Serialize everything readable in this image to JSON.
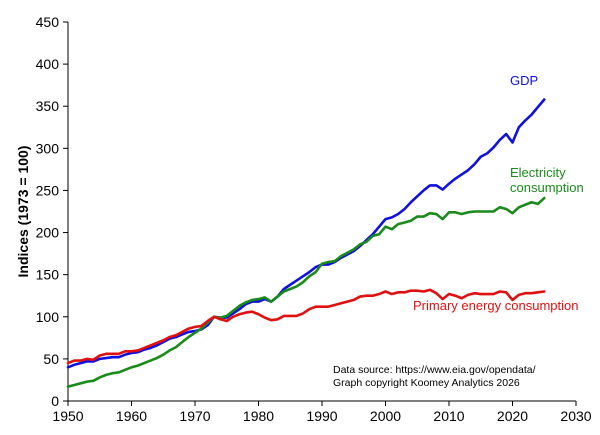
{
  "chart_data": {
    "type": "line",
    "ylabel": "Indices (1973 = 100)",
    "xlim": [
      1950,
      2030
    ],
    "ylim": [
      0,
      450
    ],
    "x_ticks": [
      1950,
      1960,
      1970,
      1980,
      1990,
      2000,
      2010,
      2020,
      2030
    ],
    "y_ticks": [
      0,
      50,
      100,
      150,
      200,
      250,
      300,
      350,
      400,
      450
    ],
    "grid": false,
    "legend": "direct labels",
    "notes": [
      "Data source: https://www.eia.gov/opendata/",
      "Graph copyright Koomey Analytics 2026"
    ],
    "series": [
      {
        "name": "GDP",
        "label_lines": [
          "GDP"
        ],
        "color": "#1010e0",
        "x": [
          1950,
          1951,
          1952,
          1953,
          1954,
          1955,
          1956,
          1957,
          1958,
          1959,
          1960,
          1961,
          1962,
          1963,
          1964,
          1965,
          1966,
          1967,
          1968,
          1969,
          1970,
          1971,
          1972,
          1973,
          1974,
          1975,
          1976,
          1977,
          1978,
          1979,
          1980,
          1981,
          1982,
          1983,
          1984,
          1985,
          1986,
          1987,
          1988,
          1989,
          1990,
          1991,
          1992,
          1993,
          1994,
          1995,
          1996,
          1997,
          1998,
          1999,
          2000,
          2001,
          2002,
          2003,
          2004,
          2005,
          2006,
          2007,
          2008,
          2009,
          2010,
          2011,
          2012,
          2013,
          2014,
          2015,
          2016,
          2017,
          2018,
          2019,
          2020,
          2021,
          2022,
          2023,
          2024,
          2025
        ],
        "values": [
          40,
          43,
          45,
          47,
          47,
          50,
          51,
          52,
          52,
          55,
          57,
          58,
          61,
          63,
          66,
          70,
          74,
          76,
          79,
          82,
          83,
          85,
          90,
          100,
          99,
          99,
          104,
          109,
          115,
          118,
          118,
          121,
          118,
          124,
          133,
          138,
          143,
          148,
          153,
          159,
          162,
          162,
          165,
          170,
          174,
          178,
          184,
          191,
          198,
          207,
          216,
          218,
          222,
          228,
          236,
          243,
          250,
          256,
          256,
          251,
          258,
          264,
          269,
          274,
          281,
          290,
          294,
          301,
          310,
          317,
          307,
          325,
          333,
          340,
          349,
          358
        ]
      },
      {
        "name": "Electricity consumption",
        "label_lines": [
          "Electricity",
          "consumption"
        ],
        "color": "#1a8a1a",
        "x": [
          1950,
          1951,
          1952,
          1953,
          1954,
          1955,
          1956,
          1957,
          1958,
          1959,
          1960,
          1961,
          1962,
          1963,
          1964,
          1965,
          1966,
          1967,
          1968,
          1969,
          1970,
          1971,
          1972,
          1973,
          1974,
          1975,
          1976,
          1977,
          1978,
          1979,
          1980,
          1981,
          1982,
          1983,
          1984,
          1985,
          1986,
          1987,
          1988,
          1989,
          1990,
          1991,
          1992,
          1993,
          1994,
          1995,
          1996,
          1997,
          1998,
          1999,
          2000,
          2001,
          2002,
          2003,
          2004,
          2005,
          2006,
          2007,
          2008,
          2009,
          2010,
          2011,
          2012,
          2013,
          2014,
          2015,
          2016,
          2017,
          2018,
          2019,
          2020,
          2021,
          2022,
          2023,
          2024,
          2025
        ],
        "values": [
          17,
          19,
          21,
          23,
          24,
          28,
          31,
          33,
          34,
          37,
          40,
          42,
          45,
          48,
          51,
          55,
          60,
          64,
          70,
          76,
          81,
          86,
          93,
          100,
          99,
          101,
          107,
          113,
          117,
          120,
          121,
          123,
          118,
          124,
          130,
          133,
          136,
          141,
          148,
          153,
          163,
          165,
          166,
          172,
          176,
          180,
          186,
          189,
          196,
          198,
          207,
          204,
          210,
          212,
          214,
          219,
          219,
          223,
          222,
          216,
          224,
          224,
          222,
          224,
          225,
          225,
          225,
          225,
          230,
          228,
          223,
          230,
          233,
          236,
          234,
          241
        ]
      },
      {
        "name": "Primary energy consumption",
        "label_lines": [
          "Primary energy consumption"
        ],
        "color": "#e01010",
        "x": [
          1950,
          1951,
          1952,
          1953,
          1954,
          1955,
          1956,
          1957,
          1958,
          1959,
          1960,
          1961,
          1962,
          1963,
          1964,
          1965,
          1966,
          1967,
          1968,
          1969,
          1970,
          1971,
          1972,
          1973,
          1974,
          1975,
          1976,
          1977,
          1978,
          1979,
          1980,
          1981,
          1982,
          1983,
          1984,
          1985,
          1986,
          1987,
          1988,
          1989,
          1990,
          1991,
          1992,
          1993,
          1994,
          1995,
          1996,
          1997,
          1998,
          1999,
          2000,
          2001,
          2002,
          2003,
          2004,
          2005,
          2006,
          2007,
          2008,
          2009,
          2010,
          2011,
          2012,
          2013,
          2014,
          2015,
          2016,
          2017,
          2018,
          2019,
          2020,
          2021,
          2022,
          2023,
          2024,
          2025
        ],
        "values": [
          45,
          48,
          48,
          50,
          49,
          54,
          56,
          56,
          56,
          59,
          59,
          60,
          63,
          66,
          69,
          72,
          76,
          78,
          82,
          86,
          88,
          89,
          95,
          100,
          97,
          95,
          100,
          103,
          105,
          106,
          103,
          99,
          96,
          97,
          101,
          101,
          101,
          104,
          109,
          112,
          112,
          112,
          114,
          116,
          118,
          120,
          124,
          125,
          125,
          127,
          130,
          127,
          129,
          129,
          131,
          131,
          130,
          132,
          128,
          121,
          127,
          125,
          122,
          126,
          128,
          127,
          127,
          127,
          130,
          129,
          120,
          126,
          128,
          128,
          129,
          130
        ]
      }
    ]
  }
}
